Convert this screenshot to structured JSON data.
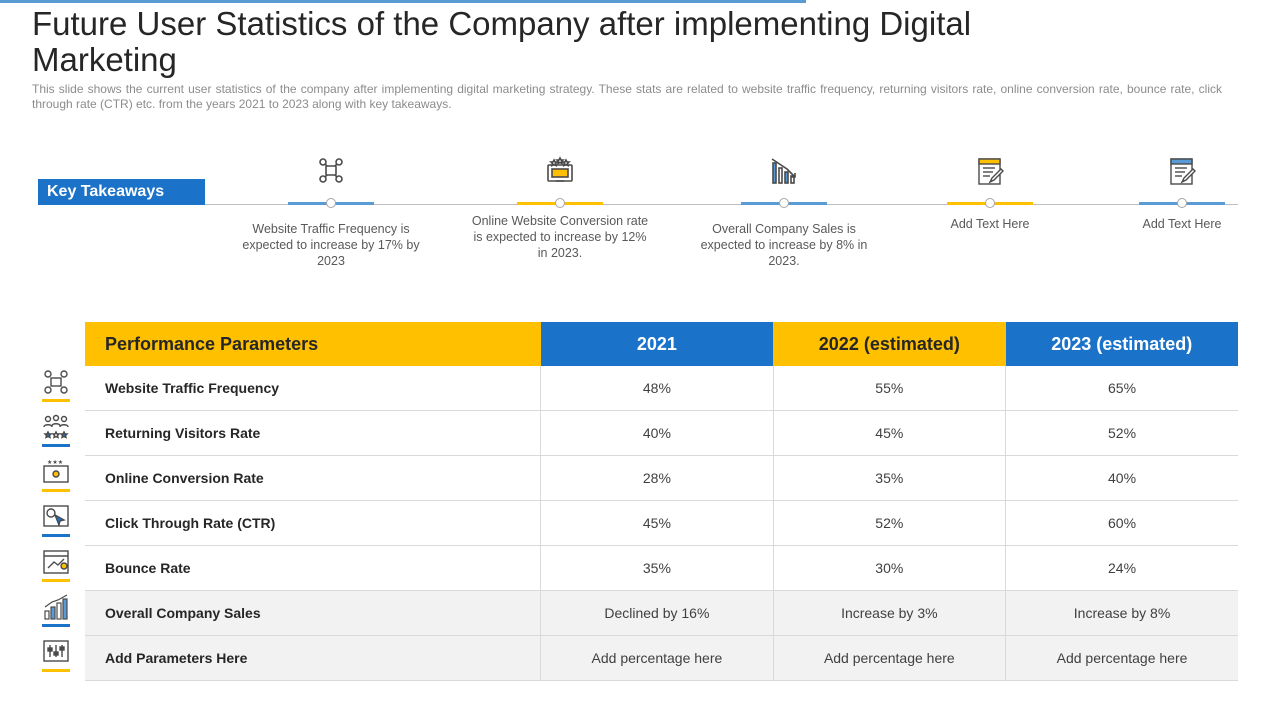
{
  "title": "Future User Statistics of the Company after implementing Digital Marketing",
  "subtitle": "This slide shows the current user statistics of the company after implementing digital marketing strategy. These stats are related to website traffic frequency, returning visitors rate, online conversion rate, bounce rate, click through rate (CTR) etc. from the years 2021 to 2023 along with key takeaways.",
  "key_takeaways": {
    "label": "Key Takeaways",
    "items": [
      {
        "icon": "network-people-icon",
        "text": "Website Traffic Frequency is expected to increase by 17% by 2023",
        "accent": "#5b9bd5"
      },
      {
        "icon": "monitor-stars-icon",
        "text": "Online Website Conversion rate is expected to increase by 12% in 2023.",
        "accent": "#ffc000"
      },
      {
        "icon": "declining-chart-icon",
        "text": "Overall Company Sales is expected to increase by 8% in 2023.",
        "accent": "#5b9bd5"
      },
      {
        "icon": "notepad-pen-icon",
        "text": "Add Text Here",
        "accent": "#ffc000"
      },
      {
        "icon": "notepad-pen-icon",
        "text": "Add Text Here",
        "accent": "#5b9bd5"
      }
    ]
  },
  "table": {
    "headers": [
      "Performance Parameters",
      "2021",
      "2022 (estimated)",
      "2023 (estimated)"
    ],
    "rows": [
      {
        "param": "Website Traffic Frequency",
        "v2021": "48%",
        "v2022": "55%",
        "v2023": "65%",
        "icon": "network-people-icon",
        "accent": "#ffc000"
      },
      {
        "param": "Returning Visitors Rate",
        "v2021": "40%",
        "v2022": "45%",
        "v2023": "52%",
        "icon": "group-stars-icon",
        "accent": "#1a73c9"
      },
      {
        "param": "Online Conversion Rate",
        "v2021": "28%",
        "v2022": "35%",
        "v2023": "40%",
        "icon": "monitor-stars-icon",
        "accent": "#ffc000"
      },
      {
        "param": "Click Through Rate (CTR)",
        "v2021": "45%",
        "v2022": "52%",
        "v2023": "60%",
        "icon": "cursor-click-icon",
        "accent": "#1a73c9"
      },
      {
        "param": "Bounce Rate",
        "v2021": "35%",
        "v2022": "30%",
        "v2023": "24%",
        "icon": "browser-chart-icon",
        "accent": "#ffc000"
      },
      {
        "param": "Overall Company Sales",
        "v2021": "Declined by 16%",
        "v2022": "Increase by 3%",
        "v2023": "Increase by 8%",
        "icon": "growth-chart-icon",
        "accent": "#1a73c9"
      },
      {
        "param": "Add Parameters Here",
        "v2021": "Add percentage here",
        "v2022": "Add percentage here",
        "v2023": "Add percentage here",
        "icon": "sliders-panel-icon",
        "accent": "#ffc000"
      }
    ]
  }
}
